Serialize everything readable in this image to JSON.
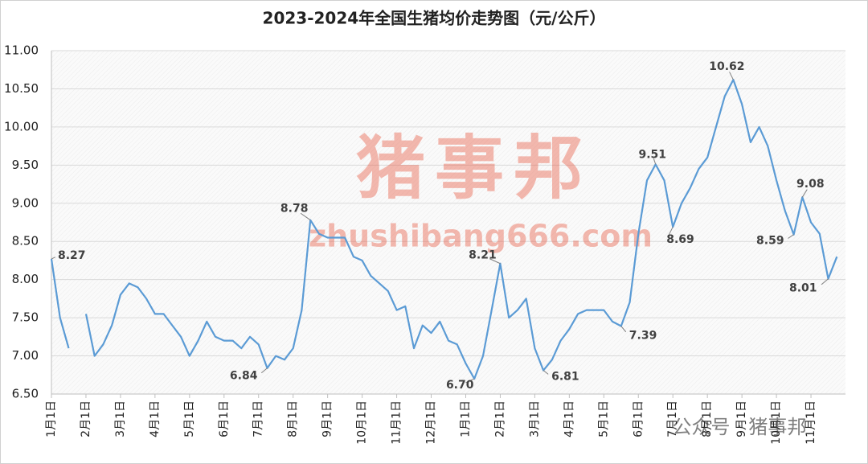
{
  "chart_data": {
    "type": "line",
    "title": "2023-2024年全国生猪均价走势图（元/公斤）",
    "watermark": "猪事邦",
    "watermark_url": "zhushibang666.com",
    "watermark_account": "公众号 · 猪事邦",
    "categories": [
      "1月1日",
      null,
      null,
      null,
      "2月1日",
      null,
      null,
      null,
      "3月1日",
      null,
      null,
      null,
      "4月1日",
      null,
      null,
      null,
      "5月1日",
      null,
      null,
      null,
      "6月1日",
      null,
      null,
      null,
      "7月1日",
      null,
      null,
      null,
      "8月1日",
      null,
      null,
      null,
      "9月1日",
      null,
      null,
      null,
      "10月1日",
      null,
      null,
      null,
      "11月1日",
      null,
      null,
      null,
      "12月1日",
      null,
      null,
      null,
      "1月1日",
      null,
      null,
      null,
      "2月1日",
      null,
      null,
      null,
      "3月1日",
      null,
      null,
      null,
      "4月1日",
      null,
      null,
      null,
      "5月1日",
      null,
      null,
      null,
      "6月1日",
      null,
      null,
      null,
      "7月1日",
      null,
      null,
      null,
      "8月1日",
      null,
      null,
      null,
      "9月1日",
      null,
      null,
      null,
      "10月1日",
      null,
      null,
      null,
      "11月1日",
      null,
      null,
      null
    ],
    "series": [
      {
        "name": "全国生猪均价",
        "color": "#5b9bd5",
        "values": [
          8.27,
          7.5,
          7.1,
          null,
          7.55,
          7.0,
          7.15,
          7.4,
          7.8,
          7.95,
          7.9,
          7.75,
          7.55,
          7.55,
          7.4,
          7.25,
          7.0,
          7.2,
          7.45,
          7.25,
          7.2,
          7.2,
          7.1,
          7.25,
          7.15,
          6.84,
          7.0,
          6.95,
          7.1,
          7.6,
          8.78,
          8.6,
          8.55,
          8.55,
          8.55,
          8.3,
          8.25,
          8.05,
          7.95,
          7.85,
          7.6,
          7.65,
          7.1,
          7.4,
          7.3,
          7.45,
          7.2,
          7.15,
          6.9,
          6.7,
          7.0,
          7.6,
          8.21,
          7.5,
          7.6,
          7.75,
          7.1,
          6.81,
          6.95,
          7.2,
          7.35,
          7.55,
          7.6,
          7.6,
          7.6,
          7.45,
          7.39,
          7.7,
          8.6,
          9.3,
          9.51,
          9.3,
          8.69,
          9.0,
          9.2,
          9.45,
          9.6,
          10.0,
          10.4,
          10.62,
          10.3,
          9.8,
          10.0,
          9.75,
          9.3,
          8.9,
          8.59,
          9.08,
          8.75,
          8.6,
          8.01,
          8.3
        ],
        "value_labels": [
          "8.27",
          null,
          null,
          null,
          null,
          null,
          null,
          null,
          null,
          null,
          null,
          null,
          null,
          null,
          null,
          null,
          null,
          null,
          null,
          null,
          null,
          null,
          null,
          null,
          null,
          "6.84",
          null,
          null,
          null,
          null,
          "8.78",
          null,
          null,
          null,
          null,
          null,
          null,
          null,
          null,
          null,
          null,
          null,
          null,
          null,
          null,
          null,
          null,
          null,
          null,
          "6.70",
          null,
          null,
          "8.21",
          null,
          null,
          null,
          null,
          "6.81",
          null,
          null,
          null,
          null,
          null,
          null,
          null,
          null,
          "7.39",
          null,
          null,
          null,
          "9.51",
          null,
          "8.69",
          null,
          null,
          null,
          null,
          null,
          null,
          "10.62",
          null,
          null,
          null,
          null,
          null,
          null,
          "8.59",
          "9.08",
          null,
          null,
          "8.01",
          null
        ]
      }
    ],
    "ylim": [
      6.5,
      11
    ],
    "yticks": [
      {
        "value": 6.5,
        "label": "6.50"
      },
      {
        "value": 7,
        "label": "7.00"
      },
      {
        "value": 7.5,
        "label": "7.50"
      },
      {
        "value": 8,
        "label": "8.00"
      },
      {
        "value": 8.5,
        "label": "8.50"
      },
      {
        "value": 9,
        "label": "9.00"
      },
      {
        "value": 9.5,
        "label": "9.50"
      },
      {
        "value": 10,
        "label": "10.00"
      },
      {
        "value": 10.5,
        "label": "10.50"
      },
      {
        "value": 11,
        "label": "11.00"
      }
    ],
    "grid": true
  }
}
